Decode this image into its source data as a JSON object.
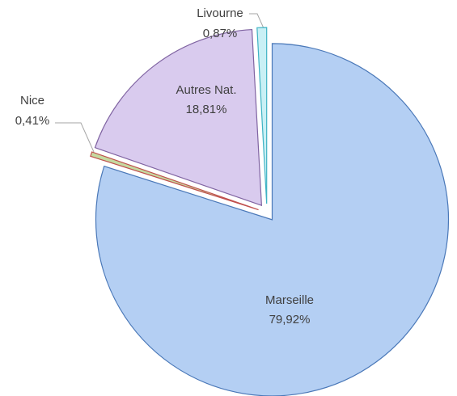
{
  "chart_data": {
    "type": "pie",
    "categories": [
      "Marseille",
      "Nice",
      "Autres Nat.",
      "Livourne"
    ],
    "values": [
      79.92,
      0.41,
      18.81,
      0.87
    ],
    "value_labels": [
      "79,92%",
      "0,41%",
      "18,81%",
      "0,87%"
    ],
    "colors": [
      "#b4cff3",
      "#c5d9a0",
      "#d9cbee",
      "#c9f0f5"
    ],
    "stroke_colors": [
      "#4a78b8",
      "#c0504d",
      "#8064a2",
      "#3fb3c4"
    ]
  }
}
